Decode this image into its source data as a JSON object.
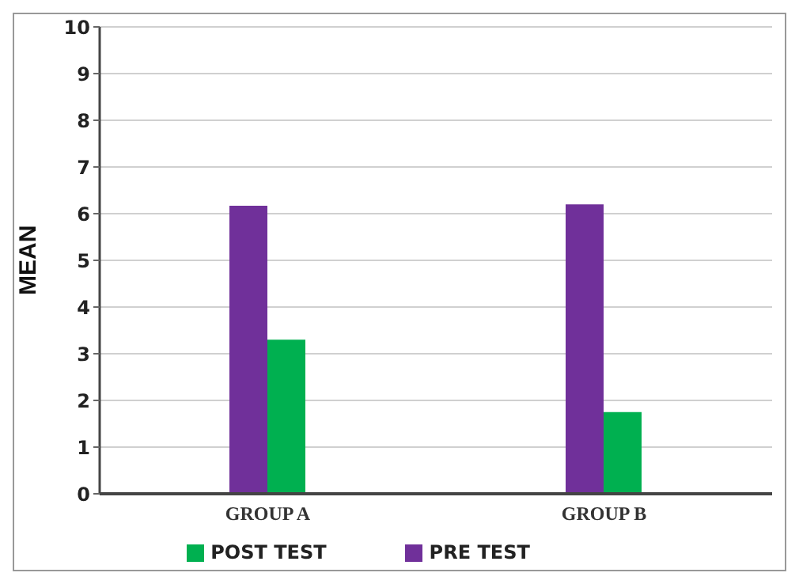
{
  "chart_data": {
    "type": "bar",
    "ylabel": "MEAN",
    "categories": [
      "GROUP A",
      "GROUP B"
    ],
    "series": [
      {
        "name": "PRE TEST",
        "color": "#70309a",
        "values": [
          6.17,
          6.2
        ]
      },
      {
        "name": "POST TEST",
        "color": "#00b050",
        "values": [
          3.3,
          1.75
        ]
      }
    ],
    "ylim": [
      0,
      10
    ],
    "yticks": [
      0,
      1,
      2,
      3,
      4,
      5,
      6,
      7,
      8,
      9,
      10
    ],
    "grid": "y",
    "legend": "bottom"
  }
}
